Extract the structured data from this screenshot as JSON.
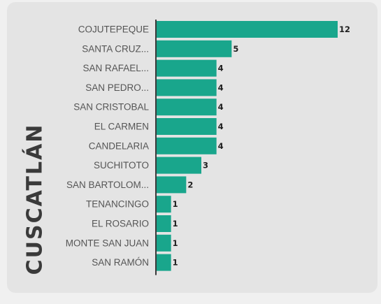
{
  "region_title": "CUSCATLÁN",
  "chart_data": {
    "type": "bar",
    "orientation": "horizontal",
    "title": "",
    "xlabel": "",
    "ylabel": "CUSCATLÁN",
    "categories": [
      "COJUTEPEQUE",
      "SANTA CRUZ...",
      "SAN RAFAEL...",
      "SAN PEDRO...",
      "SAN CRISTOBAL",
      "EL CARMEN",
      "CANDELARIA",
      "SUCHITOTO",
      "SAN BARTOLOM...",
      "TENANCINGO",
      "EL ROSARIO",
      "MONTE SAN JUAN",
      "SAN RAMÓN"
    ],
    "values": [
      12,
      5,
      4,
      4,
      4,
      4,
      4,
      3,
      2,
      1,
      1,
      1,
      1
    ],
    "xlim": [
      0,
      12
    ],
    "grid": false,
    "data_labels": true,
    "bar_color": "#19a68c",
    "axis_color": "#3a3a3a"
  }
}
